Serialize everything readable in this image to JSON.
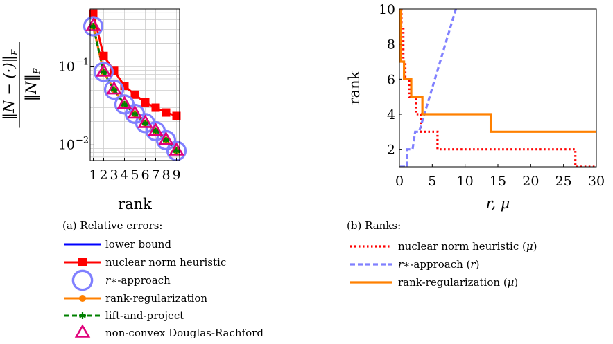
{
  "chart_data": [
    {
      "type": "line",
      "yscale": "log",
      "xlabel": "rank",
      "ylabel": "‖N − (·)‖F / ‖N‖F",
      "ylabel_num": "‖N − (·)‖",
      "ylabel_num_sub": "F",
      "ylabel_den": "‖N‖",
      "ylabel_den_sub": "F",
      "xlim": [
        0.7,
        9.3
      ],
      "ylim": [
        0.0063,
        0.55
      ],
      "grid": true,
      "x": [
        1,
        2,
        3,
        4,
        5,
        6,
        7,
        8,
        9
      ],
      "x_ticks": [
        "1",
        "2",
        "3",
        "4",
        "5",
        "6",
        "7",
        "8",
        "9"
      ],
      "y_ticks": [
        {
          "value": 0.1,
          "label": "10",
          "exp": "−1"
        },
        {
          "value": 0.01,
          "label": "10",
          "exp": "−2"
        }
      ],
      "caption": "(a) Relative errors:",
      "series": [
        {
          "name": "lower bound",
          "color": "#0000ff",
          "style": "solid",
          "marker": "none",
          "values": [
            0.33,
            0.086,
            0.051,
            0.033,
            0.025,
            0.019,
            0.015,
            0.0115,
            0.0084
          ]
        },
        {
          "name": "nuclear norm heuristic",
          "color": "#ff0000",
          "style": "solid",
          "marker": "square",
          "values": [
            0.48,
            0.138,
            0.089,
            0.057,
            0.044,
            0.035,
            0.03,
            0.026,
            0.0235
          ]
        },
        {
          "name": "r∗-approach",
          "color": "#8080ff",
          "style": "none",
          "marker": "circle",
          "values": [
            0.33,
            0.086,
            0.051,
            0.033,
            0.025,
            0.019,
            0.015,
            0.0115,
            0.0084
          ]
        },
        {
          "name": "rank-regularization",
          "color": "#ff8000",
          "style": "solid",
          "marker": "dot",
          "values": [
            0.33,
            0.086,
            0.051,
            0.033,
            0.025,
            0.019,
            0.015,
            0.0115,
            0.0084
          ]
        },
        {
          "name": "lift-and-project",
          "color": "#008000",
          "style": "dashed",
          "marker": "asterisk",
          "values": [
            0.33,
            0.086,
            0.051,
            0.033,
            0.025,
            0.019,
            0.015,
            0.0115,
            0.0084
          ]
        },
        {
          "name": "non-convex Douglas-Rachford",
          "color": "#e0007a",
          "style": "none",
          "marker": "triangle",
          "values": [
            0.33,
            0.086,
            0.051,
            0.033,
            0.025,
            0.019,
            0.015,
            0.0115,
            0.0084
          ]
        }
      ]
    },
    {
      "type": "line",
      "xlabel": "r, μ",
      "ylabel": "rank",
      "xlim": [
        0,
        30
      ],
      "ylim": [
        1,
        10
      ],
      "grid": false,
      "x_ticks": [
        "0",
        "5",
        "10",
        "15",
        "20",
        "25",
        "30"
      ],
      "y_ticks": [
        "2",
        "4",
        "6",
        "8",
        "10"
      ],
      "caption": "(b) Ranks:",
      "series": [
        {
          "name": "nuclear norm heuristic (μ)",
          "color": "#ff0000",
          "style": "dotted",
          "points": [
            [
              0.3,
              10
            ],
            [
              0.3,
              9
            ],
            [
              0.6,
              9
            ],
            [
              0.6,
              7
            ],
            [
              0.9,
              7
            ],
            [
              0.9,
              6
            ],
            [
              1.5,
              6
            ],
            [
              1.5,
              5
            ],
            [
              2.5,
              5
            ],
            [
              2.5,
              4
            ],
            [
              3.3,
              4
            ],
            [
              3.3,
              3
            ],
            [
              5.8,
              3
            ],
            [
              5.8,
              2
            ],
            [
              26.8,
              2
            ],
            [
              26.8,
              1
            ],
            [
              30,
              1
            ]
          ]
        },
        {
          "name": "r∗-approach (r)",
          "color": "#8080ff",
          "style": "dashed",
          "points": [
            [
              0.1,
              1
            ],
            [
              1.2,
              1
            ],
            [
              1.2,
              2
            ],
            [
              2,
              2
            ],
            [
              2.4,
              3
            ],
            [
              3,
              3
            ],
            [
              3.8,
              4
            ],
            [
              4.6,
              5
            ],
            [
              5.4,
              6
            ],
            [
              6.2,
              7
            ],
            [
              7,
              8
            ],
            [
              7.8,
              9
            ],
            [
              8.6,
              10
            ],
            [
              9.2,
              10.2
            ]
          ]
        },
        {
          "name": "rank-regularization (μ)",
          "color": "#ff8000",
          "style": "solid",
          "points": [
            [
              0.2,
              10
            ],
            [
              0.2,
              7
            ],
            [
              0.7,
              7
            ],
            [
              0.7,
              6
            ],
            [
              1.8,
              6
            ],
            [
              1.8,
              5
            ],
            [
              3.5,
              5
            ],
            [
              3.5,
              4
            ],
            [
              13.9,
              4
            ],
            [
              13.9,
              3
            ],
            [
              30,
              3
            ]
          ]
        }
      ]
    }
  ],
  "legend_icon_r": "r",
  "legend_b_r_star": "r∗-approach (r)"
}
